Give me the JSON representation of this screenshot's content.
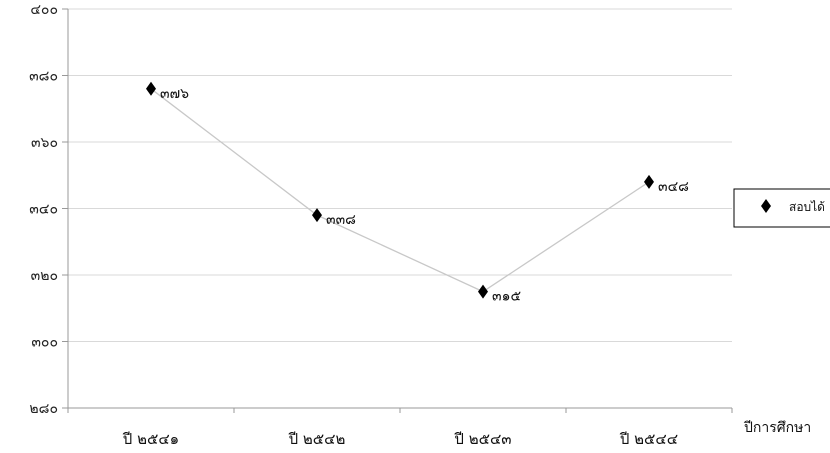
{
  "chart_data": {
    "type": "line",
    "categories": [
      "ปี ๒๕๔๑",
      "ปี ๒๕๔๒",
      "ปี ๒๕๔๓",
      "ปี ๒๕๔๔"
    ],
    "series": [
      {
        "name": "สอบได้",
        "values": [
          376,
          338,
          315,
          348
        ],
        "labels": [
          "๓๗๖",
          "๓๓๘",
          "๓๑๕",
          "๓๔๘"
        ]
      }
    ],
    "ylim": [
      280,
      400
    ],
    "yticks": [
      {
        "value": 400,
        "label": "๔๐๐"
      },
      {
        "value": 380,
        "label": "๓๘๐"
      },
      {
        "value": 360,
        "label": "๓๖๐"
      },
      {
        "value": 340,
        "label": "๓๔๐"
      },
      {
        "value": 320,
        "label": "๓๒๐"
      },
      {
        "value": 300,
        "label": "๓๐๐"
      },
      {
        "value": 280,
        "label": "๒๘๐"
      }
    ],
    "xlabel": "ปีการศึกษา",
    "ylabel": "",
    "title": "",
    "grid": true,
    "legend_position": "right",
    "colors": {
      "line": "#c8c8c8",
      "marker": "#000000",
      "grid": "#d9d9d9",
      "axis": "#999999"
    }
  }
}
